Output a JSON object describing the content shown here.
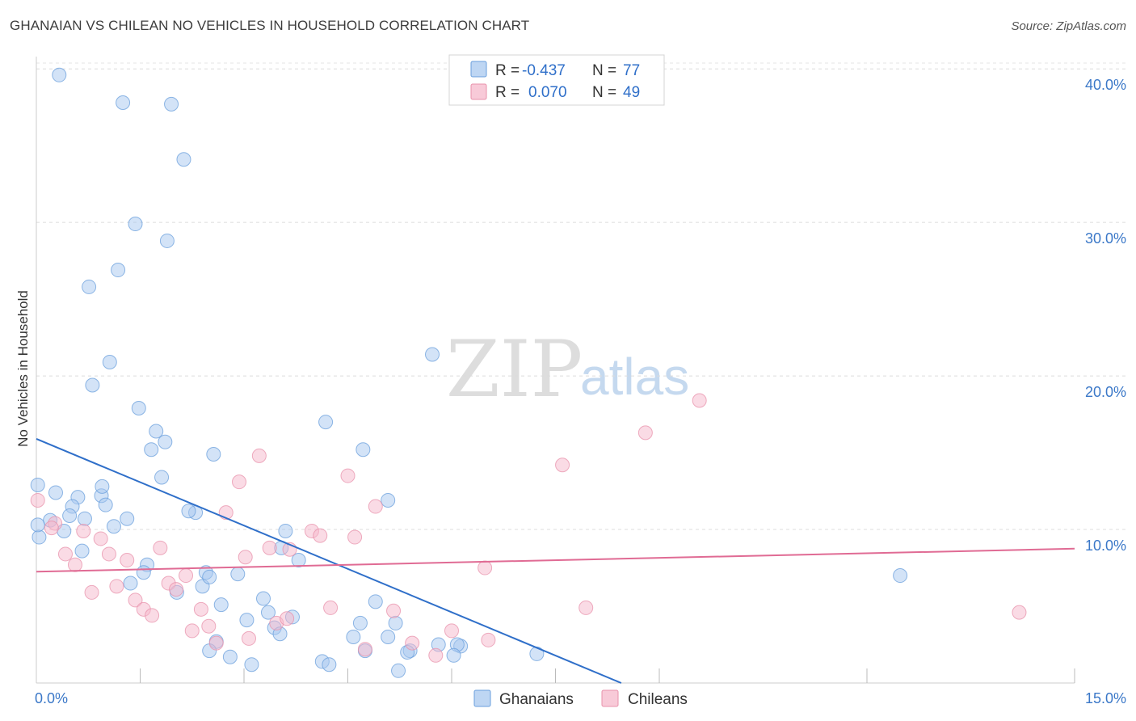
{
  "chart_data": {
    "type": "scatter",
    "title": "GHANAIAN VS CHILEAN NO VEHICLES IN HOUSEHOLD CORRELATION CHART",
    "source": "Source: ZipAtlas.com",
    "xlabel": "",
    "ylabel": "No Vehicles in Household",
    "xlim": [
      0,
      15
    ],
    "ylim": [
      0,
      40.8
    ],
    "x_tick_labels": [
      {
        "value": 0,
        "label": "0.0%"
      },
      {
        "value": 15,
        "label": "15.0%"
      }
    ],
    "y_tick_labels": [
      {
        "value": 10,
        "label": "10.0%"
      },
      {
        "value": 20,
        "label": "20.0%"
      },
      {
        "value": 30,
        "label": "30.0%"
      },
      {
        "value": 40,
        "label": "40.0%"
      }
    ],
    "x_minor_ticks": [
      1.5,
      3.0,
      4.5,
      6.0,
      7.5,
      9.0,
      12.0,
      15.0
    ],
    "grid": true,
    "watermark": {
      "zip": "ZIP",
      "atlas": "atlas"
    },
    "legend_stats": [
      {
        "r_label": "R =",
        "r_value": "-0.437",
        "n_label": "N =",
        "n_value": "77",
        "color": "#a8c8ef"
      },
      {
        "r_label": "R =",
        "r_value": "0.070",
        "n_label": "N =",
        "n_value": "49",
        "color": "#f5b8cb"
      }
    ],
    "series": [
      {
        "name": "Ghanaians",
        "color": "#a8c8ef",
        "stroke": "#6a9fdc",
        "trend_color": "#2f6fc9",
        "trend": {
          "x": [
            0,
            8.45
          ],
          "y": [
            15.9,
            0
          ]
        },
        "points": [
          [
            0.33,
            39.6
          ],
          [
            1.25,
            37.8
          ],
          [
            1.95,
            37.7
          ],
          [
            2.13,
            34.1
          ],
          [
            1.43,
            29.9
          ],
          [
            1.89,
            28.8
          ],
          [
            1.18,
            26.9
          ],
          [
            0.76,
            25.8
          ],
          [
            1.06,
            20.9
          ],
          [
            0.81,
            19.4
          ],
          [
            1.48,
            17.9
          ],
          [
            5.72,
            21.4
          ],
          [
            4.18,
            17.0
          ],
          [
            1.73,
            16.4
          ],
          [
            1.86,
            15.7
          ],
          [
            1.66,
            15.2
          ],
          [
            2.56,
            14.9
          ],
          [
            4.72,
            15.2
          ],
          [
            1.81,
            13.4
          ],
          [
            0.02,
            12.9
          ],
          [
            0.28,
            12.4
          ],
          [
            0.6,
            12.1
          ],
          [
            0.94,
            12.2
          ],
          [
            0.95,
            12.8
          ],
          [
            5.08,
            11.9
          ],
          [
            0.52,
            11.5
          ],
          [
            1.0,
            11.6
          ],
          [
            2.3,
            11.1
          ],
          [
            2.2,
            11.2
          ],
          [
            0.48,
            10.9
          ],
          [
            0.2,
            10.6
          ],
          [
            0.7,
            10.7
          ],
          [
            1.31,
            10.7
          ],
          [
            1.12,
            10.2
          ],
          [
            0.4,
            9.9
          ],
          [
            3.6,
            9.9
          ],
          [
            0.04,
            9.5
          ],
          [
            3.54,
            8.8
          ],
          [
            3.79,
            8.0
          ],
          [
            0.66,
            8.6
          ],
          [
            1.6,
            7.7
          ],
          [
            1.55,
            7.2
          ],
          [
            2.45,
            7.2
          ],
          [
            2.91,
            7.1
          ],
          [
            12.48,
            7.0
          ],
          [
            1.36,
            6.5
          ],
          [
            2.03,
            5.9
          ],
          [
            2.4,
            6.3
          ],
          [
            3.28,
            5.5
          ],
          [
            2.67,
            5.1
          ],
          [
            4.9,
            5.3
          ],
          [
            3.35,
            4.6
          ],
          [
            3.7,
            4.3
          ],
          [
            3.04,
            4.1
          ],
          [
            4.68,
            3.9
          ],
          [
            5.19,
            3.9
          ],
          [
            3.44,
            3.6
          ],
          [
            3.52,
            3.2
          ],
          [
            5.08,
            3.0
          ],
          [
            4.58,
            3.0
          ],
          [
            2.6,
            2.7
          ],
          [
            5.81,
            2.5
          ],
          [
            6.13,
            2.4
          ],
          [
            6.08,
            2.5
          ],
          [
            4.75,
            2.1
          ],
          [
            5.4,
            2.1
          ],
          [
            5.36,
            2.0
          ],
          [
            2.5,
            2.1
          ],
          [
            6.03,
            1.8
          ],
          [
            7.23,
            1.9
          ],
          [
            2.8,
            1.7
          ],
          [
            4.13,
            1.4
          ],
          [
            4.23,
            1.2
          ],
          [
            3.11,
            1.2
          ],
          [
            5.23,
            0.8
          ],
          [
            0.02,
            10.3
          ],
          [
            2.5,
            6.9
          ]
        ]
      },
      {
        "name": "Chileans",
        "color": "#f5b8cb",
        "stroke": "#e891ab",
        "trend_color": "#e06b94",
        "trend": {
          "x": [
            0,
            15
          ],
          "y": [
            7.25,
            8.75
          ]
        },
        "points": [
          [
            0.02,
            11.9
          ],
          [
            0.27,
            10.4
          ],
          [
            0.22,
            10.1
          ],
          [
            0.42,
            8.4
          ],
          [
            0.56,
            7.7
          ],
          [
            0.68,
            9.9
          ],
          [
            0.8,
            5.9
          ],
          [
            0.93,
            9.4
          ],
          [
            1.05,
            8.4
          ],
          [
            1.16,
            6.3
          ],
          [
            1.31,
            8.0
          ],
          [
            1.43,
            5.4
          ],
          [
            1.55,
            4.8
          ],
          [
            1.67,
            4.4
          ],
          [
            1.79,
            8.8
          ],
          [
            1.91,
            6.5
          ],
          [
            2.02,
            6.1
          ],
          [
            2.16,
            7.0
          ],
          [
            2.25,
            3.4
          ],
          [
            2.38,
            4.8
          ],
          [
            2.49,
            3.7
          ],
          [
            2.6,
            2.6
          ],
          [
            2.74,
            11.1
          ],
          [
            2.93,
            13.1
          ],
          [
            3.02,
            8.2
          ],
          [
            3.07,
            2.9
          ],
          [
            3.22,
            14.8
          ],
          [
            3.37,
            8.8
          ],
          [
            3.47,
            3.9
          ],
          [
            3.62,
            4.2
          ],
          [
            3.66,
            8.7
          ],
          [
            3.98,
            9.9
          ],
          [
            4.1,
            9.6
          ],
          [
            4.25,
            4.9
          ],
          [
            4.5,
            13.5
          ],
          [
            4.6,
            9.5
          ],
          [
            4.75,
            2.2
          ],
          [
            4.9,
            11.5
          ],
          [
            5.16,
            4.7
          ],
          [
            5.43,
            2.6
          ],
          [
            5.77,
            1.8
          ],
          [
            6.0,
            3.4
          ],
          [
            6.53,
            2.8
          ],
          [
            6.48,
            7.5
          ],
          [
            7.6,
            14.2
          ],
          [
            7.94,
            4.9
          ],
          [
            8.8,
            16.3
          ],
          [
            9.58,
            18.4
          ],
          [
            14.2,
            4.6
          ]
        ]
      }
    ]
  }
}
